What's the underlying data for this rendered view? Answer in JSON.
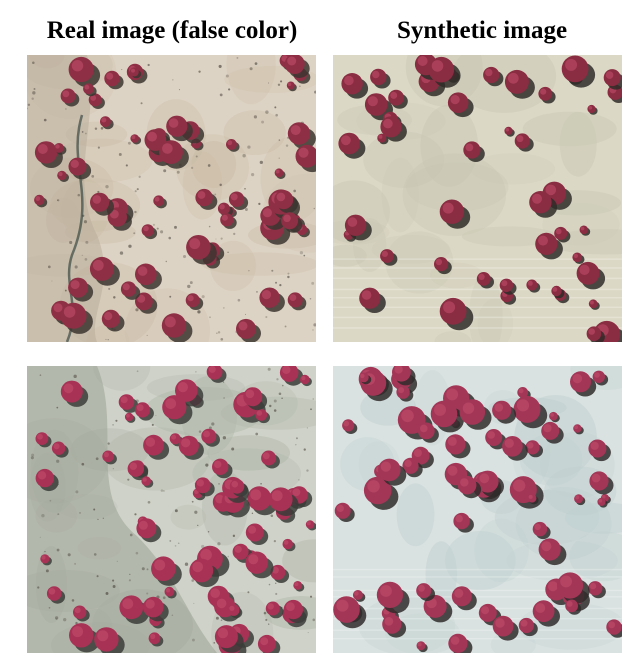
{
  "columns": {
    "left_title": "Real image (false color)",
    "right_title": "Synthetic image"
  },
  "panels": [
    {
      "id": "real-top",
      "kind": "real",
      "ground": "#ddd3c4",
      "ground_alt": "#c9b9a3",
      "tree": "#8e2f45",
      "shadow": "#3b3530",
      "seed": 11,
      "count": 62
    },
    {
      "id": "synthetic-top",
      "kind": "synthetic",
      "ground": "#dcd8c6",
      "ground_alt": "#c8c6b2",
      "tree": "#8a2c42",
      "shadow": "#2f2b28",
      "seed": 23,
      "count": 48
    },
    {
      "id": "real-bottom",
      "kind": "real",
      "ground": "#cfd2c8",
      "ground_alt": "#aeb4a8",
      "tree": "#a83256",
      "shadow": "#3a3c38",
      "seed": 37,
      "count": 70
    },
    {
      "id": "synthetic-bottom",
      "kind": "synthetic",
      "ground": "#d9e2e0",
      "ground_alt": "#bfcfcf",
      "tree": "#a33657",
      "shadow": "#302c2c",
      "seed": 51,
      "count": 68
    }
  ]
}
